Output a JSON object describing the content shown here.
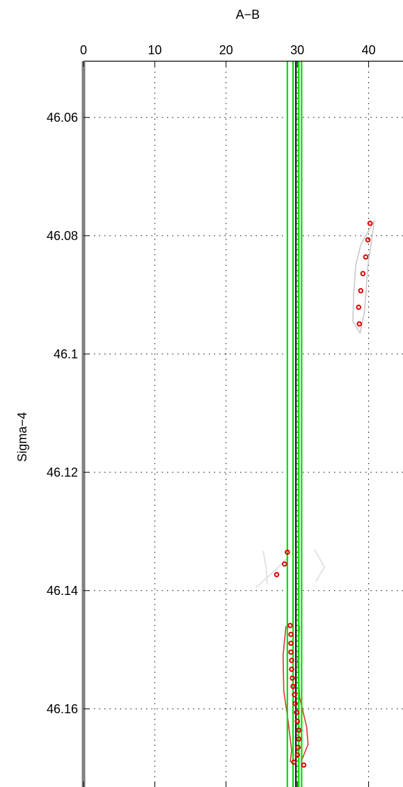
{
  "chart_data": {
    "type": "scatter",
    "title": "",
    "xlabel": "A−B",
    "ylabel": "Sigma−4",
    "xlim": [
      0,
      45
    ],
    "ylim": [
      46.0505,
      46.1755
    ],
    "y_inverted": true,
    "x_axis_position": "top",
    "grid": true,
    "x_ticks": [
      0,
      10,
      20,
      30,
      40
    ],
    "x_tick_labels": [
      "0",
      "10",
      "20",
      "30",
      "40"
    ],
    "y_ticks": [
      46.06,
      46.08,
      46.1,
      46.12,
      46.14,
      46.16
    ],
    "y_tick_labels": [
      "46.06",
      "46.08",
      "46.1",
      "46.12",
      "46.14",
      "46.16"
    ],
    "vertical_lines": [
      {
        "x": 28.6,
        "color": "#00dd00"
      },
      {
        "x": 29.4,
        "color": "#00dd00"
      },
      {
        "x": 29.8,
        "color": "#111111"
      },
      {
        "x": 30.2,
        "color": "#00dd00"
      },
      {
        "x": 30.6,
        "color": "#00dd00"
      }
    ],
    "series": [
      {
        "marker": "open-circle",
        "color": "#dd0000",
        "points": [
          {
            "x": 40.2,
            "y": 46.0779
          },
          {
            "x": 39.9,
            "y": 46.0807
          },
          {
            "x": 39.6,
            "y": 46.0836
          },
          {
            "x": 39.2,
            "y": 46.0864
          },
          {
            "x": 38.9,
            "y": 46.0893
          },
          {
            "x": 38.6,
            "y": 46.0921
          },
          {
            "x": 38.7,
            "y": 46.0949
          },
          {
            "x": 28.6,
            "y": 46.1335
          },
          {
            "x": 28.2,
            "y": 46.1355
          },
          {
            "x": 27.1,
            "y": 46.1373
          },
          {
            "x": 29.0,
            "y": 46.1459
          },
          {
            "x": 29.1,
            "y": 46.1474
          },
          {
            "x": 29.1,
            "y": 46.1489
          },
          {
            "x": 29.1,
            "y": 46.1504
          },
          {
            "x": 29.2,
            "y": 46.1518
          },
          {
            "x": 29.2,
            "y": 46.1533
          },
          {
            "x": 29.3,
            "y": 46.1548
          },
          {
            "x": 29.4,
            "y": 46.1562
          },
          {
            "x": 29.6,
            "y": 46.1576
          },
          {
            "x": 29.7,
            "y": 46.1591
          },
          {
            "x": 29.9,
            "y": 46.1606
          },
          {
            "x": 30.0,
            "y": 46.1621
          },
          {
            "x": 30.2,
            "y": 46.1636
          },
          {
            "x": 30.2,
            "y": 46.1651
          },
          {
            "x": 30.1,
            "y": 46.1665
          },
          {
            "x": 30.0,
            "y": 46.1678
          },
          {
            "x": 29.5,
            "y": 46.169
          },
          {
            "x": 30.9,
            "y": 46.1695
          }
        ]
      }
    ],
    "envelopes": [
      {
        "color": "#c8c8c8",
        "points": [
          {
            "x": 40.8,
            "y": 46.0775
          },
          {
            "x": 40.4,
            "y": 46.081
          },
          {
            "x": 39.9,
            "y": 46.085
          },
          {
            "x": 39.6,
            "y": 46.09
          },
          {
            "x": 39.4,
            "y": 46.093
          },
          {
            "x": 38.8,
            "y": 46.0965
          },
          {
            "x": 37.8,
            "y": 46.0945
          },
          {
            "x": 37.9,
            "y": 46.09
          },
          {
            "x": 38.2,
            "y": 46.085
          },
          {
            "x": 38.9,
            "y": 46.0815
          },
          {
            "x": 40.8,
            "y": 46.0775
          }
        ]
      },
      {
        "color": "#dddddd",
        "points": [
          {
            "x": 24.2,
            "y": 46.1395
          },
          {
            "x": 26.5,
            "y": 46.137
          },
          {
            "x": 28.6,
            "y": 46.1345
          }
        ]
      },
      {
        "color": "#dddddd",
        "points": [
          {
            "x": 25.2,
            "y": 46.1333
          },
          {
            "x": 25.6,
            "y": 46.136
          },
          {
            "x": 25.8,
            "y": 46.139
          }
        ]
      },
      {
        "color": "#dddddd",
        "points": [
          {
            "x": 32.4,
            "y": 46.133
          },
          {
            "x": 33.8,
            "y": 46.136
          },
          {
            "x": 32.6,
            "y": 46.1385
          }
        ]
      },
      {
        "color": "#dd3333",
        "points": [
          {
            "x": 28.4,
            "y": 46.146
          },
          {
            "x": 28.0,
            "y": 46.151
          },
          {
            "x": 28.1,
            "y": 46.157
          },
          {
            "x": 28.7,
            "y": 46.162
          },
          {
            "x": 29.2,
            "y": 46.167
          },
          {
            "x": 29.0,
            "y": 46.169
          }
        ]
      },
      {
        "color": "#dd3333",
        "points": [
          {
            "x": 30.3,
            "y": 46.146
          },
          {
            "x": 30.1,
            "y": 46.152
          },
          {
            "x": 30.3,
            "y": 46.158
          },
          {
            "x": 31.3,
            "y": 46.163
          },
          {
            "x": 31.5,
            "y": 46.166
          },
          {
            "x": 30.5,
            "y": 46.169
          }
        ]
      }
    ]
  }
}
